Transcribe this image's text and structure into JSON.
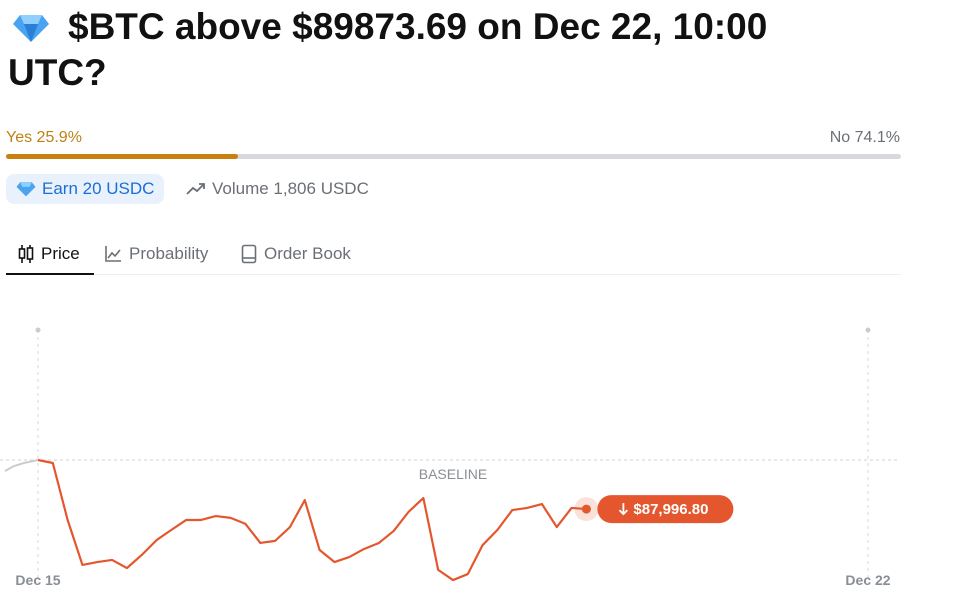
{
  "header": {
    "title": "$BTC above $89873.69 on Dec 22, 10:00 UTC?"
  },
  "odds": {
    "yes": {
      "value": 25.9,
      "label": "Yes 25.9%"
    },
    "no": {
      "value": 74.1,
      "label": "No 74.1%"
    }
  },
  "badges": {
    "earn": "Earn 20 USDC",
    "volume": "Volume 1,806 USDC"
  },
  "tabs": [
    "Price",
    "Probability",
    "Order Book"
  ],
  "chart_data": {
    "type": "line",
    "color": "#e4572e",
    "annotation": "BASELINE",
    "baseline": 89873.69,
    "categories": [
      "Dec 15",
      null,
      null,
      null,
      null,
      null,
      null,
      null,
      null,
      null,
      null,
      null,
      null,
      null,
      null,
      null,
      null,
      null,
      null,
      null,
      null,
      null,
      null,
      null,
      null,
      null,
      null,
      null,
      null,
      null,
      null,
      null,
      null,
      null,
      null,
      null,
      null,
      null,
      null,
      null,
      null,
      null,
      null,
      null,
      null,
      null,
      null,
      null,
      null,
      null,
      null,
      null,
      null,
      null,
      null,
      null,
      "Dec 22"
    ],
    "values": [
      89875,
      89760,
      87580,
      85860,
      85970,
      86050,
      85740,
      86240,
      86810,
      87200,
      87580,
      87580,
      87730,
      87660,
      87430,
      86700,
      86780,
      87310,
      88340,
      86430,
      85970,
      86160,
      86470,
      86700,
      87160,
      87890,
      88420,
      85670,
      85280,
      85510,
      86620,
      87200,
      87960,
      88040,
      88190,
      87310,
      88040,
      87996.8,
      null,
      null,
      null,
      null,
      null,
      null,
      null,
      null,
      null,
      null,
      null,
      null,
      null,
      null,
      null,
      null,
      null,
      null,
      null
    ],
    "value_labels": [
      null,
      null,
      null,
      null,
      null,
      null,
      null,
      null,
      null,
      null,
      null,
      null,
      null,
      null,
      null,
      null,
      null,
      null,
      null,
      null,
      null,
      null,
      null,
      null,
      null,
      null,
      null,
      null,
      null,
      null,
      null,
      null,
      null,
      null,
      null,
      null,
      null,
      "$87,996.80",
      null,
      null,
      null,
      null,
      null,
      null,
      null,
      null,
      null,
      null,
      null,
      null,
      null,
      null,
      null,
      null,
      null,
      null,
      null
    ],
    "ylim": [
      84900,
      94850
    ]
  }
}
